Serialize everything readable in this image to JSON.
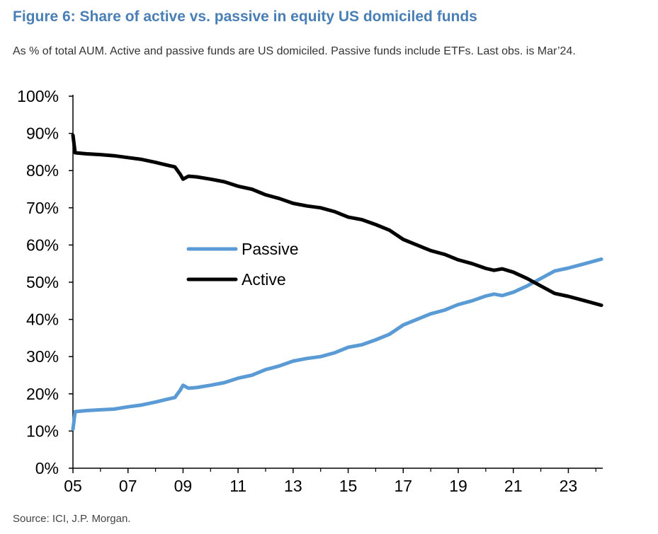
{
  "title": "Figure 6: Share of active vs. passive in equity US domiciled funds",
  "subtitle": "As % of total AUM. Active and passive funds are US domiciled. Passive funds include ETFs. Last obs. is Mar’24.",
  "source": "Source: ICI, J.P. Morgan.",
  "colors": {
    "title": "#4a7fb5",
    "passive": "#5b9bd5",
    "active": "#000000"
  },
  "chart_data": {
    "type": "line",
    "xlim": [
      2005,
      2024.25
    ],
    "ylim": [
      0,
      100
    ],
    "x_ticks": [
      2005,
      2007,
      2009,
      2011,
      2013,
      2015,
      2017,
      2019,
      2021,
      2023
    ],
    "x_tick_labels": [
      "05",
      "07",
      "09",
      "11",
      "13",
      "15",
      "17",
      "19",
      "21",
      "23"
    ],
    "y_ticks": [
      0,
      10,
      20,
      30,
      40,
      50,
      60,
      70,
      80,
      90,
      100
    ],
    "y_tick_labels": [
      "0%",
      "10%",
      "20%",
      "30%",
      "40%",
      "50%",
      "60%",
      "70%",
      "80%",
      "90%",
      "100%"
    ],
    "legend_position": "center",
    "series": [
      {
        "name": "Passive",
        "color": "#5b9bd5",
        "points": [
          [
            2005.0,
            10.5
          ],
          [
            2005.08,
            15.2
          ],
          [
            2005.5,
            15.5
          ],
          [
            2006.0,
            15.7
          ],
          [
            2006.5,
            15.9
          ],
          [
            2007.0,
            16.5
          ],
          [
            2007.5,
            17.0
          ],
          [
            2008.0,
            17.8
          ],
          [
            2008.4,
            18.5
          ],
          [
            2008.7,
            19.0
          ],
          [
            2008.9,
            21.0
          ],
          [
            2009.0,
            22.3
          ],
          [
            2009.2,
            21.5
          ],
          [
            2009.5,
            21.7
          ],
          [
            2010.0,
            22.3
          ],
          [
            2010.5,
            23.0
          ],
          [
            2011.0,
            24.2
          ],
          [
            2011.5,
            25.0
          ],
          [
            2012.0,
            26.5
          ],
          [
            2012.5,
            27.5
          ],
          [
            2013.0,
            28.8
          ],
          [
            2013.5,
            29.5
          ],
          [
            2014.0,
            30.0
          ],
          [
            2014.5,
            31.0
          ],
          [
            2015.0,
            32.5
          ],
          [
            2015.5,
            33.2
          ],
          [
            2016.0,
            34.5
          ],
          [
            2016.5,
            36.0
          ],
          [
            2017.0,
            38.5
          ],
          [
            2017.5,
            40.0
          ],
          [
            2018.0,
            41.5
          ],
          [
            2018.5,
            42.5
          ],
          [
            2019.0,
            44.0
          ],
          [
            2019.5,
            45.0
          ],
          [
            2020.0,
            46.3
          ],
          [
            2020.3,
            46.8
          ],
          [
            2020.6,
            46.4
          ],
          [
            2021.0,
            47.3
          ],
          [
            2021.5,
            49.0
          ],
          [
            2022.0,
            51.0
          ],
          [
            2022.5,
            53.0
          ],
          [
            2023.0,
            53.8
          ],
          [
            2023.5,
            54.8
          ],
          [
            2024.2,
            56.2
          ]
        ]
      },
      {
        "name": "Active",
        "color": "#000000",
        "points": [
          [
            2005.0,
            89.5
          ],
          [
            2005.08,
            84.8
          ],
          [
            2005.5,
            84.5
          ],
          [
            2006.0,
            84.3
          ],
          [
            2006.5,
            84.0
          ],
          [
            2007.0,
            83.5
          ],
          [
            2007.5,
            83.0
          ],
          [
            2008.0,
            82.2
          ],
          [
            2008.4,
            81.5
          ],
          [
            2008.7,
            81.0
          ],
          [
            2008.9,
            79.0
          ],
          [
            2009.0,
            77.7
          ],
          [
            2009.2,
            78.5
          ],
          [
            2009.5,
            78.3
          ],
          [
            2010.0,
            77.7
          ],
          [
            2010.5,
            77.0
          ],
          [
            2011.0,
            75.8
          ],
          [
            2011.5,
            75.0
          ],
          [
            2012.0,
            73.5
          ],
          [
            2012.5,
            72.5
          ],
          [
            2013.0,
            71.2
          ],
          [
            2013.5,
            70.5
          ],
          [
            2014.0,
            70.0
          ],
          [
            2014.5,
            69.0
          ],
          [
            2015.0,
            67.5
          ],
          [
            2015.5,
            66.8
          ],
          [
            2016.0,
            65.5
          ],
          [
            2016.5,
            64.0
          ],
          [
            2017.0,
            61.5
          ],
          [
            2017.5,
            60.0
          ],
          [
            2018.0,
            58.5
          ],
          [
            2018.5,
            57.5
          ],
          [
            2019.0,
            56.0
          ],
          [
            2019.5,
            55.0
          ],
          [
            2020.0,
            53.7
          ],
          [
            2020.3,
            53.2
          ],
          [
            2020.6,
            53.6
          ],
          [
            2021.0,
            52.7
          ],
          [
            2021.5,
            51.0
          ],
          [
            2022.0,
            49.0
          ],
          [
            2022.5,
            47.0
          ],
          [
            2023.0,
            46.2
          ],
          [
            2023.5,
            45.2
          ],
          [
            2024.2,
            43.8
          ]
        ]
      }
    ]
  }
}
